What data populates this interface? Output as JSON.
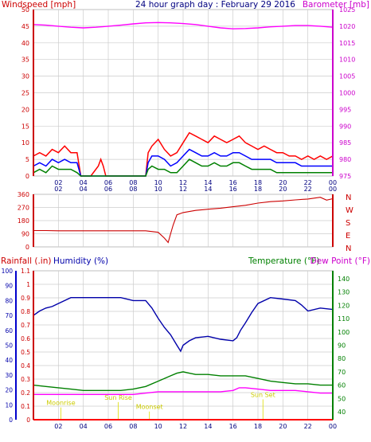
{
  "header": {
    "left_title": "Windspeed [mph]",
    "center_title": "24 hour graph day : February 29 2016",
    "right_title": "Barometer [mb]"
  },
  "colors": {
    "wind_gust": "#ff0000",
    "wind_avg": "#0000ff",
    "wind_low": "#008000",
    "barometer": "#ff00ff",
    "direction": "#cc0000",
    "humidity": "#0000aa",
    "temperature": "#008000",
    "dewpoint": "#ff00ff",
    "rainfall": "#ff0000",
    "axis_red": "#cc0000",
    "events": "#dddd00"
  },
  "x_ticks": [
    "02",
    "04",
    "06",
    "08",
    "10",
    "12",
    "14",
    "16",
    "18",
    "20",
    "22",
    "00"
  ],
  "chart_data": [
    {
      "type": "line",
      "id": "wind_baro",
      "x_hours": [
        0,
        24
      ],
      "ylabel_left": "Windspeed [mph]",
      "ylabel_right": "Barometer [mb]",
      "ylim_left": [
        0,
        50
      ],
      "yticks_left": [
        "0",
        "5",
        "10",
        "15",
        "20",
        "25",
        "30",
        "35",
        "40",
        "45",
        "50"
      ],
      "ylim_right": [
        975,
        1025
      ],
      "yticks_right": [
        "975",
        "980",
        "985",
        "990",
        "995",
        "1000",
        "1005",
        "1010",
        "1015",
        "1020",
        "1025"
      ],
      "grid": true,
      "series": [
        {
          "key": "gust",
          "axis": "left",
          "x": [
            0,
            0.5,
            1,
            1.5,
            2,
            2.5,
            3,
            3.5,
            3.8,
            4.6,
            5.2,
            5.4,
            5.6,
            5.8,
            6,
            8,
            9,
            9.2,
            9.5,
            10,
            10.5,
            11,
            11.5,
            12,
            12.5,
            13,
            13.5,
            14,
            14.5,
            15,
            15.5,
            16,
            16.5,
            17,
            17.5,
            18,
            18.5,
            19,
            19.5,
            20,
            20.5,
            21,
            21.5,
            22,
            22.5,
            23,
            23.5,
            24
          ],
          "values": [
            6,
            7,
            6,
            8,
            7,
            9,
            7,
            7,
            0,
            0,
            3,
            5,
            3,
            0,
            0,
            0,
            0,
            7,
            9,
            11,
            8,
            6,
            7,
            10,
            13,
            12,
            11,
            10,
            12,
            11,
            10,
            11,
            12,
            10,
            9,
            8,
            9,
            8,
            7,
            7,
            6,
            6,
            5,
            6,
            5,
            6,
            5,
            6
          ]
        },
        {
          "key": "average",
          "axis": "left",
          "x": [
            0,
            0.5,
            1,
            1.5,
            2,
            2.5,
            3,
            3.5,
            3.8,
            9,
            9.2,
            9.5,
            10,
            10.5,
            11,
            11.5,
            12,
            12.5,
            13,
            13.5,
            14,
            14.5,
            15,
            15.5,
            16,
            16.5,
            17,
            17.5,
            18,
            18.5,
            19,
            19.5,
            20,
            20.5,
            21,
            21.5,
            22,
            22.5,
            23,
            23.5,
            24
          ],
          "values": [
            3,
            4,
            3,
            5,
            4,
            5,
            4,
            4,
            0,
            0,
            4,
            6,
            6,
            5,
            3,
            4,
            6,
            8,
            7,
            6,
            6,
            7,
            6,
            6,
            7,
            7,
            6,
            5,
            5,
            5,
            5,
            4,
            4,
            4,
            4,
            3,
            3,
            3,
            3,
            3,
            3
          ]
        },
        {
          "key": "lull",
          "axis": "left",
          "x": [
            0,
            0.5,
            1,
            1.5,
            2,
            2.5,
            3,
            3.5,
            3.8,
            9,
            9.2,
            9.5,
            10,
            10.5,
            11,
            11.5,
            12,
            12.5,
            13,
            13.5,
            14,
            14.5,
            15,
            15.5,
            16,
            16.5,
            17,
            17.5,
            18,
            18.5,
            19,
            19.5,
            20,
            20.5,
            21,
            21.5,
            22,
            22.5,
            23,
            23.5,
            24
          ],
          "values": [
            1,
            2,
            1,
            3,
            2,
            2,
            2,
            1,
            0,
            0,
            2,
            3,
            2,
            2,
            1,
            1,
            3,
            5,
            4,
            3,
            3,
            4,
            3,
            3,
            4,
            4,
            3,
            2,
            2,
            2,
            2,
            1,
            1,
            1,
            1,
            1,
            1,
            1,
            1,
            1,
            1
          ]
        },
        {
          "key": "barometer",
          "axis": "right",
          "x": [
            0,
            1,
            2,
            3,
            4,
            5,
            6,
            7,
            8,
            9,
            10,
            11,
            12,
            13,
            14,
            15,
            16,
            17,
            18,
            19,
            20,
            21,
            22,
            23,
            24
          ],
          "values": [
            1020.5,
            1020.3,
            1020,
            1019.7,
            1019.5,
            1019.7,
            1020,
            1020.3,
            1020.7,
            1021,
            1021.1,
            1021,
            1020.8,
            1020.5,
            1020,
            1019.5,
            1019.2,
            1019.3,
            1019.5,
            1019.8,
            1020,
            1020.2,
            1020.2,
            1020,
            1019.7
          ]
        }
      ]
    },
    {
      "type": "line",
      "id": "direction",
      "x_hours": [
        0,
        24
      ],
      "ylim": [
        0,
        360
      ],
      "yticks": [
        "0",
        "90",
        "180",
        "270",
        "360"
      ],
      "compass_labels": [
        "N",
        "W",
        "S",
        "E",
        "N"
      ],
      "grid": true,
      "series": [
        {
          "key": "direction",
          "x": [
            0,
            1,
            2,
            3,
            4,
            5,
            6,
            7,
            8,
            9,
            10,
            10.5,
            10.8,
            11,
            11.2,
            11.5,
            12,
            12.5,
            13,
            14,
            15,
            16,
            17,
            18,
            19,
            20,
            21,
            22,
            23,
            23.5,
            24
          ],
          "values": [
            112,
            112,
            110,
            110,
            110,
            110,
            110,
            110,
            110,
            110,
            100,
            60,
            30,
            90,
            150,
            220,
            235,
            242,
            250,
            258,
            265,
            275,
            285,
            300,
            310,
            315,
            322,
            328,
            340,
            320,
            330
          ]
        }
      ]
    },
    {
      "type": "line",
      "id": "temp_hum",
      "x_hours": [
        0,
        24
      ],
      "title_left_1": "Rainfall (.in)",
      "title_left_2": "Humidity (%)",
      "title_right_1": "Temperature (°F)",
      "title_right_2": "Dew Point (°F)",
      "ylim_rain": [
        0,
        1.1
      ],
      "yticks_rain": [
        "0",
        "0.1",
        "0.2",
        "0.3",
        "0.4",
        "0.5",
        "0.6",
        "0.7",
        "0.8",
        "0.9",
        "1",
        "1.1"
      ],
      "ylim_humidity": [
        0,
        100
      ],
      "yticks_humidity": [
        "0",
        "10",
        "20",
        "30",
        "40",
        "50",
        "60",
        "70",
        "80",
        "90",
        "100"
      ],
      "ylim_temp": [
        34,
        146
      ],
      "yticks_temp": [
        "40",
        "50",
        "60",
        "70",
        "80",
        "90",
        "100",
        "110",
        "120",
        "130",
        "140"
      ],
      "grid": true,
      "series": [
        {
          "key": "humidity",
          "axis": "humidity",
          "x": [
            0,
            0.5,
            1,
            1.5,
            2,
            3,
            4,
            5,
            6,
            7,
            8,
            9,
            9.5,
            10,
            10.5,
            11,
            11.5,
            11.8,
            12,
            12.5,
            13,
            14,
            15,
            16,
            16.3,
            16.6,
            17,
            17.5,
            18,
            19,
            20,
            21,
            21.5,
            22,
            23,
            24
          ],
          "values": [
            70,
            73,
            75,
            76,
            78,
            82,
            82,
            82,
            82,
            82,
            80,
            80,
            75,
            68,
            62,
            57,
            50,
            46,
            50,
            53,
            55,
            56,
            54,
            53,
            55,
            60,
            65,
            72,
            78,
            82,
            81,
            80,
            77,
            73,
            75,
            74
          ]
        },
        {
          "key": "temperature",
          "axis": "temp",
          "x": [
            0,
            1,
            2,
            3,
            4,
            5,
            6,
            7,
            8,
            9,
            10,
            11,
            11.5,
            12,
            12.5,
            13,
            14,
            15,
            16,
            17,
            18,
            19,
            20,
            21,
            22,
            23,
            24
          ],
          "values": [
            60,
            59,
            58,
            57,
            56,
            56,
            56,
            56,
            57,
            59,
            63,
            67,
            69,
            70,
            69,
            68,
            68,
            67,
            67,
            67,
            65,
            63,
            62,
            61,
            61,
            60,
            60
          ]
        },
        {
          "key": "dewpoint",
          "axis": "temp",
          "x": [
            0,
            1,
            2,
            3,
            4,
            5,
            6,
            7,
            8,
            9,
            10,
            11,
            12,
            13,
            14,
            15,
            16,
            16.5,
            17,
            18,
            19,
            20,
            21,
            22,
            23,
            24
          ],
          "values": [
            53,
            53,
            53,
            53,
            53,
            53,
            53,
            53,
            53,
            54,
            55,
            55,
            55,
            55,
            55,
            55,
            56,
            58,
            58,
            57,
            56,
            56,
            56,
            55,
            54,
            54
          ]
        },
        {
          "key": "rainfall",
          "axis": "rain",
          "x": [
            0,
            24
          ],
          "values": [
            0,
            0
          ]
        }
      ],
      "events": [
        {
          "label": "Moonrise",
          "x": 2.2,
          "level": 0.108
        },
        {
          "label": "Sun Rise",
          "x": 6.8,
          "level": 0.148
        },
        {
          "label": "Moonset",
          "x": 9.3,
          "level": 0.078
        },
        {
          "label": "Sun Set",
          "x": 18.4,
          "level": 0.168
        }
      ]
    }
  ]
}
